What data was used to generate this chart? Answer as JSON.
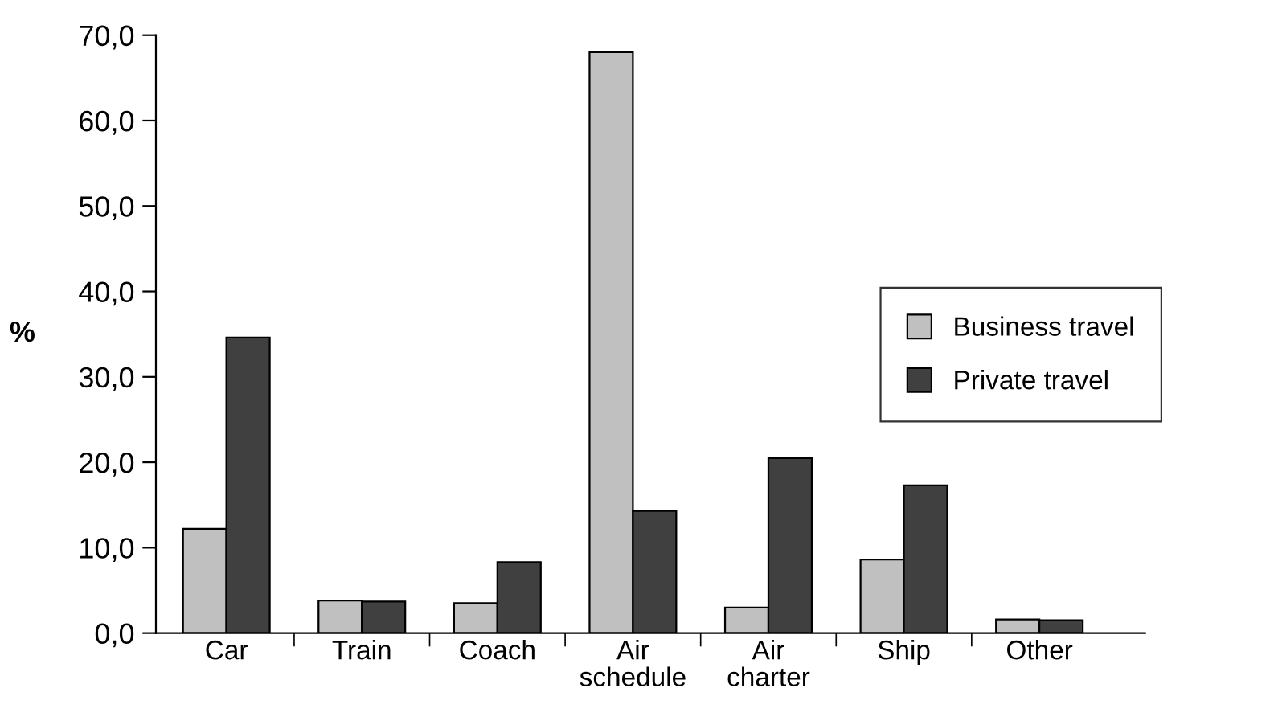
{
  "chart_data": {
    "type": "bar",
    "ylabel": "%",
    "categories": [
      "Car",
      "Train",
      "Coach",
      "Air\nschedule",
      "Air\ncharter",
      "Ship",
      "Other"
    ],
    "series": [
      {
        "name": "Business travel",
        "color": "#c0c0c0",
        "values": [
          12.2,
          3.8,
          3.5,
          68.0,
          3.0,
          8.6,
          1.6
        ]
      },
      {
        "name": "Private travel",
        "color": "#404040",
        "values": [
          34.6,
          3.7,
          8.3,
          14.3,
          20.5,
          17.3,
          1.5
        ]
      }
    ],
    "ylim": [
      0,
      70
    ],
    "yticks": [
      {
        "value": 0,
        "label": "0,0"
      },
      {
        "value": 10,
        "label": "10,0"
      },
      {
        "value": 20,
        "label": "20,0"
      },
      {
        "value": 30,
        "label": "30,0"
      },
      {
        "value": 40,
        "label": "40,0"
      },
      {
        "value": 50,
        "label": "50,0"
      },
      {
        "value": 60,
        "label": "60,0"
      },
      {
        "value": 70,
        "label": "70,0"
      }
    ],
    "grid": false,
    "legend": "right"
  }
}
